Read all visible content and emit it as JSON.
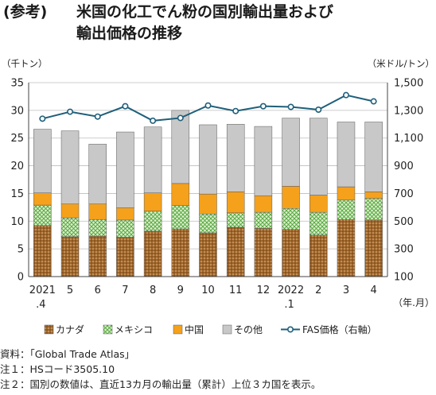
{
  "title": {
    "tag": "(参考)",
    "line1": "米国の化工でん粉の国別輸出量および",
    "line2": "輸出価格の推移"
  },
  "chart_data": {
    "type": "bar",
    "stacked": true,
    "categories": [
      "2021\n.4",
      "5",
      "6",
      "7",
      "8",
      "9",
      "10",
      "11",
      "12",
      "2022\n.1",
      "2",
      "3",
      "4"
    ],
    "series": [
      {
        "name": "カナダ",
        "values": [
          9.2,
          7.2,
          7.3,
          7.1,
          8.2,
          8.6,
          7.9,
          8.9,
          8.7,
          8.5,
          7.5,
          10.3,
          10.2
        ],
        "color": "#a0662b",
        "pattern": "dots"
      },
      {
        "name": "メキシコ",
        "values": [
          3.7,
          3.4,
          3.0,
          3.1,
          3.6,
          4.2,
          3.4,
          2.6,
          2.9,
          3.8,
          4.1,
          3.5,
          3.9
        ],
        "color": "#a6d98a",
        "pattern": "crosshatch"
      },
      {
        "name": "中国",
        "values": [
          2.2,
          2.5,
          2.8,
          2.2,
          3.3,
          4.0,
          3.6,
          3.8,
          3.0,
          4.0,
          3.1,
          2.4,
          1.2
        ],
        "color": "#f5a11c"
      },
      {
        "name": "その他",
        "values": [
          11.5,
          13.2,
          10.8,
          13.7,
          11.9,
          13.2,
          12.5,
          12.2,
          12.5,
          12.3,
          13.9,
          11.7,
          12.6
        ],
        "color": "#c8c8c8"
      }
    ],
    "line": {
      "name": "FAS価格（右軸）",
      "values": [
        1240,
        1290,
        1255,
        1330,
        1225,
        1245,
        1335,
        1295,
        1330,
        1325,
        1305,
        1410,
        1365
      ],
      "color": "#1f5f7a"
    },
    "yleft": {
      "label": "（千トン）",
      "min": 0,
      "max": 35,
      "ticks": [
        0,
        5,
        10,
        15,
        20,
        25,
        30,
        35
      ]
    },
    "yright": {
      "label": "（米ドル/トン）",
      "min": 100,
      "max": 1500,
      "ticks": [
        "100",
        "300",
        "500",
        "700",
        "900",
        "1,100",
        "1,300",
        "1,500"
      ]
    },
    "xlabel": "（年.月）",
    "grid": true,
    "legend_position": "bottom"
  },
  "notes": [
    "資料：「Global Trade Atlas」",
    "注１：HSコード3505.10",
    "注２：国別の数値は、直近13カ月の輸出量（累計）上位３カ国を表示。"
  ]
}
